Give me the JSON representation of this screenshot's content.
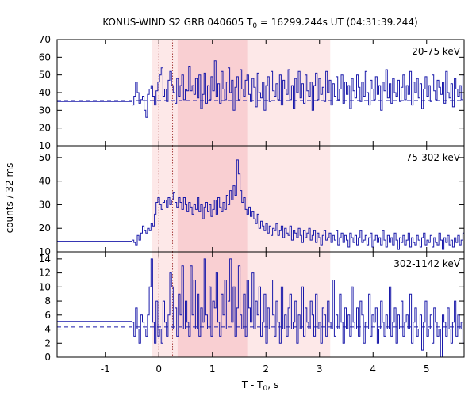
{
  "chart_data": {
    "type": "line",
    "title_parts": {
      "prefix": "KONUS-WIND S2 GRB 040605 T",
      "sub": "0",
      "suffix": " = 16299.244s UT (04:31:39.244)"
    },
    "xlabel_parts": {
      "prefix": "T - T",
      "sub": "0",
      "suffix": ", s"
    },
    "ylabel": "counts / 32 ms",
    "xlim": [
      -1.9,
      5.7
    ],
    "x_ticks": [
      -1,
      0,
      1,
      2,
      3,
      4,
      5
    ],
    "x_tick_labels": [
      "-1",
      "0",
      "1",
      "2",
      "3",
      "4",
      "5"
    ],
    "bin_width_s": 0.032,
    "shaded_intervals": [
      {
        "x": [
          -0.128,
          3.2
        ],
        "color": "#fde8e8"
      },
      {
        "x": [
          0.35,
          1.65
        ],
        "color": "#f9cfd2"
      }
    ],
    "vertical_markers": [
      {
        "x": 0.0,
        "color": "#aa4444"
      },
      {
        "x": 0.256,
        "color": "#aa4444"
      }
    ],
    "line_color": "#1a1aaa",
    "panels": [
      {
        "energy_label": "20-75 keV",
        "ylim": [
          10,
          70
        ],
        "y_ticks": [
          10,
          20,
          30,
          40,
          50,
          60,
          70
        ],
        "y_tick_labels": [
          "10",
          "20",
          "30",
          "40",
          "50",
          "60",
          "70"
        ],
        "background_level": 35,
        "background_line": 35.5,
        "pre_burst_end": -0.5,
        "values": [
          33,
          38,
          46,
          40,
          34,
          36,
          38,
          30,
          26,
          39,
          42,
          44,
          38,
          33,
          41,
          46,
          50,
          54,
          38,
          42,
          35,
          47,
          52,
          44,
          40,
          34,
          48,
          38,
          44,
          50,
          36,
          42,
          41,
          55,
          41,
          44,
          39,
          48,
          37,
          50,
          31,
          39,
          51,
          34,
          44,
          36,
          49,
          41,
          58,
          38,
          45,
          34,
          52,
          42,
          36,
          46,
          54,
          40,
          47,
          30,
          43,
          49,
          36,
          53,
          42,
          38,
          47,
          50,
          39,
          35,
          48,
          43,
          32,
          51,
          40,
          37,
          46,
          30,
          44,
          49,
          35,
          52,
          41,
          38,
          45,
          36,
          50,
          33,
          47,
          42,
          39,
          53,
          36,
          44,
          31,
          48,
          40,
          52,
          37,
          45,
          34,
          50,
          41,
          38,
          46,
          30,
          44,
          51,
          36,
          48,
          39,
          43,
          35,
          52,
          40,
          47,
          33,
          45,
          38,
          49,
          36,
          42,
          50,
          34,
          46,
          39,
          44,
          31,
          48,
          41,
          37,
          50,
          43,
          35,
          46,
          38,
          52,
          40,
          33,
          47,
          42,
          36,
          49,
          39,
          44,
          30,
          46,
          41,
          53,
          37,
          45,
          34,
          48,
          40,
          38,
          47,
          35,
          43,
          50,
          36,
          44,
          39,
          52,
          33,
          46,
          40,
          48,
          37,
          45,
          31,
          42,
          49,
          38,
          44,
          35,
          50,
          41,
          36,
          47,
          43,
          39,
          46,
          34,
          52,
          40,
          37,
          45,
          32,
          48,
          42,
          38,
          44,
          36,
          50,
          41,
          47,
          33,
          45,
          39,
          52,
          37,
          43,
          35,
          48,
          40,
          46,
          38,
          44,
          31,
          49,
          42,
          36,
          47,
          41,
          54,
          38,
          45,
          34,
          50,
          39,
          43,
          36,
          47,
          41,
          38,
          46,
          33,
          44,
          40,
          36,
          42,
          30,
          38,
          26
        ]
      },
      {
        "energy_label": "75-302 keV",
        "ylim": [
          10,
          55
        ],
        "y_ticks": [
          10,
          20,
          30,
          40,
          50
        ],
        "y_tick_labels": [
          "10",
          "20",
          "30",
          "40",
          "50"
        ],
        "background_level": 14.5,
        "background_line": 12.5,
        "pre_burst_end": -0.5,
        "values": [
          15,
          14,
          13,
          17,
          15,
          18,
          21,
          19,
          18,
          20,
          19,
          22,
          21,
          26,
          31,
          33,
          30,
          28,
          31,
          32,
          29,
          33,
          30,
          32,
          35,
          31,
          29,
          33,
          31,
          28,
          33,
          30,
          27,
          31,
          29,
          26,
          30,
          28,
          33,
          27,
          30,
          24,
          29,
          31,
          27,
          30,
          25,
          28,
          32,
          26,
          33,
          29,
          27,
          31,
          28,
          34,
          30,
          36,
          32,
          38,
          34,
          49,
          43,
          36,
          31,
          33,
          28,
          26,
          29,
          25,
          27,
          24,
          22,
          26,
          20,
          23,
          21,
          19,
          22,
          18,
          21,
          17,
          20,
          19,
          22,
          17,
          19,
          21,
          16,
          20,
          18,
          17,
          21,
          15,
          19,
          18,
          16,
          20,
          17,
          14,
          19,
          16,
          18,
          20,
          15,
          17,
          19,
          14,
          18,
          16,
          13,
          17,
          19,
          15,
          16,
          18,
          14,
          17,
          15,
          19,
          13,
          16,
          18,
          14,
          17,
          15,
          12,
          18,
          16,
          14,
          17,
          13,
          16,
          19,
          14,
          15,
          17,
          13,
          16,
          18,
          12,
          15,
          17,
          14,
          16,
          13,
          19,
          15,
          12,
          17,
          14,
          16,
          13,
          18,
          15,
          11,
          16,
          14,
          17,
          13,
          15,
          18,
          12,
          16,
          14,
          13,
          17,
          15,
          12,
          16,
          18,
          13,
          15,
          14,
          17,
          12,
          16,
          14,
          13,
          18,
          15,
          11,
          16,
          14,
          17,
          13,
          15,
          12,
          16,
          14,
          17,
          13,
          15,
          18,
          12,
          14,
          16,
          13,
          17,
          15,
          12,
          16,
          14,
          13,
          15,
          17,
          11,
          16,
          14,
          13,
          15,
          12,
          17,
          14,
          16,
          13,
          11,
          15,
          14,
          12,
          16,
          13,
          17,
          15,
          10,
          14,
          13,
          16,
          12,
          15
        ]
      },
      {
        "energy_label": "302-1142 keV",
        "ylim": [
          0,
          15
        ],
        "y_ticks": [
          0,
          2,
          4,
          6,
          8,
          10,
          12,
          14
        ],
        "y_tick_labels": [
          "0",
          "2",
          "4",
          "6",
          "8",
          "10",
          "12",
          "14"
        ],
        "background_level": 5.1,
        "background_line": 4.3,
        "pre_burst_end": -0.5,
        "values": [
          5,
          3,
          7,
          4,
          2,
          6,
          5,
          4,
          3,
          6,
          10,
          14,
          5,
          2,
          8,
          3,
          4,
          2,
          8,
          5,
          3,
          6,
          12,
          10,
          4,
          7,
          3,
          9,
          6,
          13,
          4,
          8,
          5,
          3,
          13,
          6,
          11,
          4,
          9,
          3,
          7,
          5,
          14,
          6,
          4,
          10,
          3,
          8,
          7,
          12,
          5,
          3,
          9,
          6,
          11,
          4,
          8,
          14,
          5,
          10,
          3,
          7,
          13,
          6,
          4,
          9,
          3,
          11,
          7,
          5,
          12,
          4,
          8,
          6,
          10,
          3,
          5,
          9,
          2,
          7,
          4,
          11,
          6,
          3,
          8,
          5,
          2,
          10,
          4,
          6,
          3,
          7,
          9,
          4,
          5,
          8,
          2,
          6,
          4,
          10,
          3,
          7,
          5,
          4,
          8,
          6,
          3,
          9,
          4,
          5,
          2,
          7,
          6,
          3,
          8,
          5,
          4,
          11,
          3,
          6,
          4,
          9,
          5,
          2,
          7,
          4,
          6,
          3,
          10,
          5,
          4,
          7,
          3,
          8,
          6,
          2,
          5,
          4,
          9,
          3,
          6,
          5,
          7,
          2,
          4,
          8,
          5,
          3,
          6,
          4,
          10,
          3,
          5,
          7,
          2,
          6,
          4,
          8,
          3,
          5,
          6,
          4,
          9,
          2,
          5,
          7,
          3,
          4,
          6,
          1,
          5,
          8,
          3,
          4,
          6,
          2,
          7,
          5,
          3,
          4,
          0,
          6,
          5,
          3,
          7,
          4,
          2,
          5,
          8,
          3,
          6,
          4,
          5,
          2,
          7,
          4,
          3,
          6,
          5,
          9,
          3,
          4,
          6,
          2,
          5,
          7,
          4,
          3,
          5,
          6,
          2,
          4,
          8,
          3,
          5,
          4,
          6,
          3,
          7,
          5,
          4,
          2,
          6,
          5,
          3,
          4,
          9,
          5,
          3
        ]
      }
    ]
  }
}
